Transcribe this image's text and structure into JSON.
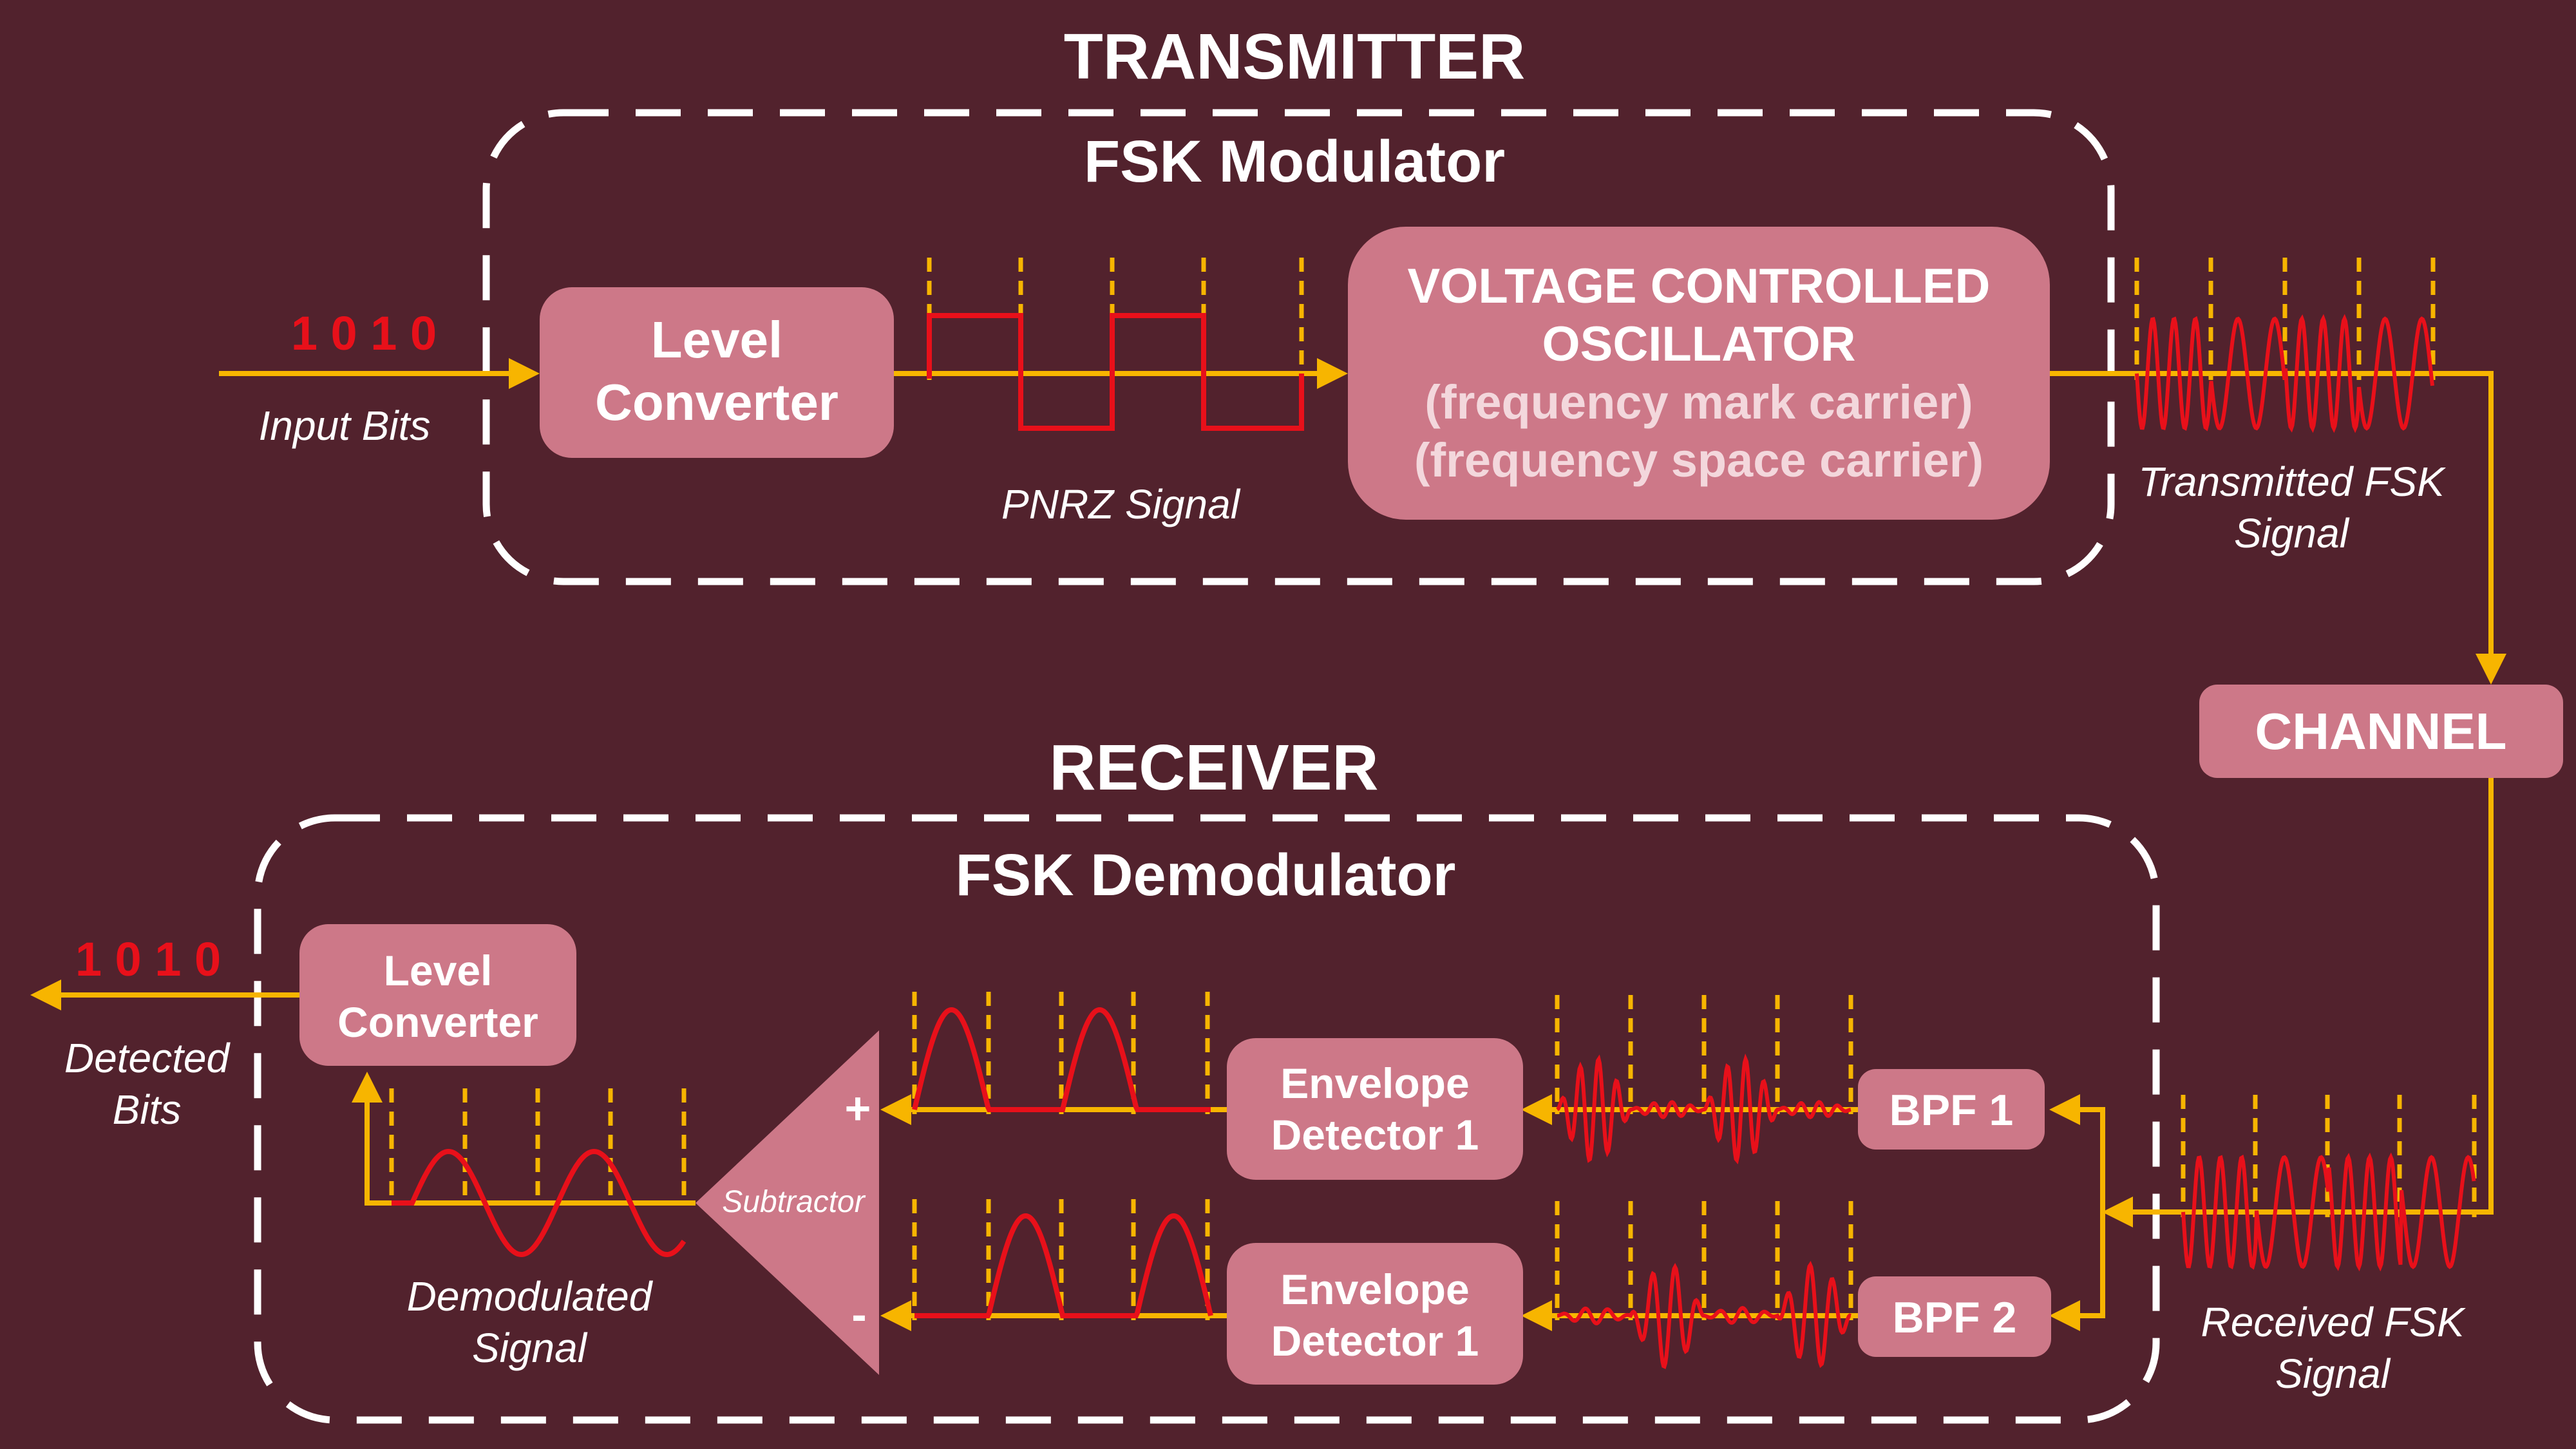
{
  "colors": {
    "background": "#52222d",
    "block_fill": "#cd7888",
    "signal_line": "#f7b500",
    "waveform": "#e8101a",
    "dashed_border": "#ffffff"
  },
  "transmitter": {
    "title": "TRANSMITTER",
    "group_title": "FSK Modulator",
    "input_bits": "1 0 1 0",
    "input_label": "Input Bits",
    "level_converter": [
      "Level",
      "Converter"
    ],
    "pnrz_label": "PNRZ Signal",
    "vco": [
      "VOLTAGE CONTROLLED",
      "OSCILLATOR",
      "(frequency mark carrier)",
      "(frequency space carrier)"
    ],
    "output_label": [
      "Transmitted FSK",
      "Signal"
    ]
  },
  "channel": {
    "label": "CHANNEL"
  },
  "receiver": {
    "title": "RECEIVER",
    "group_title": "FSK Demodulator",
    "received_label": [
      "Received FSK",
      "Signal"
    ],
    "bpf1": "BPF 1",
    "bpf2": "BPF 2",
    "envelope_detector_top": [
      "Envelope",
      "Detector 1"
    ],
    "envelope_detector_bottom": [
      "Envelope",
      "Detector 1"
    ],
    "subtractor": "Subtractor",
    "plus_sign": "+",
    "minus_sign": "-",
    "demodulated_label": [
      "Demodulated",
      "Signal"
    ],
    "level_converter": [
      "Level",
      "Converter"
    ],
    "detected_bits": "1 0 1 0",
    "detected_label": [
      "Detected",
      "Bits"
    ]
  }
}
